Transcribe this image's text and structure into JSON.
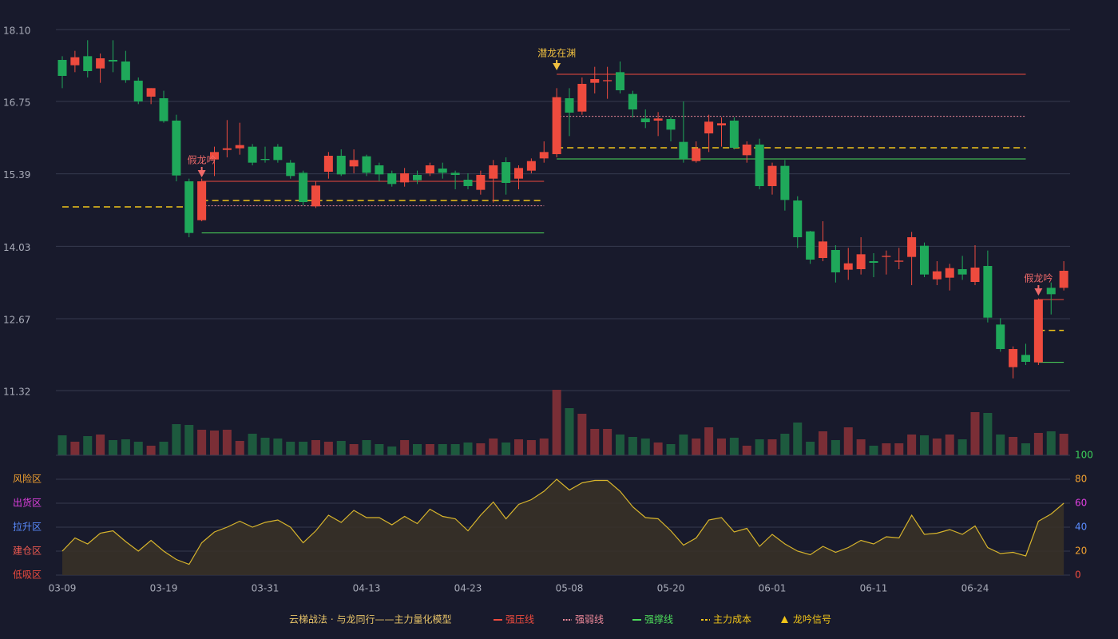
{
  "chart_data": {
    "type": "candlestick",
    "title": "云梯战法 · 与龙同行——主力量化模型",
    "categories": [
      "03-09",
      null,
      null,
      null,
      null,
      null,
      null,
      null,
      "03-19",
      null,
      null,
      null,
      null,
      null,
      null,
      null,
      "03-31",
      null,
      null,
      null,
      null,
      null,
      null,
      null,
      "04-13",
      null,
      null,
      null,
      null,
      null,
      null,
      null,
      "04-23",
      null,
      null,
      null,
      null,
      null,
      null,
      null,
      "05-08",
      null,
      null,
      null,
      null,
      null,
      null,
      null,
      "05-20",
      null,
      null,
      null,
      null,
      null,
      null,
      null,
      "06-01",
      null,
      null,
      null,
      null,
      null,
      null,
      null,
      "06-11",
      null,
      null,
      null,
      null,
      null,
      null,
      null,
      "06-24",
      null,
      null,
      null,
      null,
      null,
      null,
      null
    ],
    "open": [
      17.53,
      17.43,
      17.6,
      17.37,
      17.53,
      17.5,
      17.14,
      16.84,
      16.81,
      16.39,
      15.25,
      14.52,
      15.66,
      15.84,
      15.87,
      15.9,
      15.67,
      15.9,
      15.6,
      15.41,
      14.78,
      15.43,
      15.73,
      15.53,
      15.72,
      15.55,
      15.4,
      15.23,
      15.37,
      15.4,
      15.49,
      15.41,
      15.28,
      15.09,
      15.3,
      15.61,
      15.3,
      15.45,
      15.68,
      15.76,
      16.81,
      16.56,
      17.1,
      17.13,
      17.3,
      16.89,
      16.43,
      16.39,
      16.42,
      15.99,
      15.63,
      16.15,
      16.3,
      16.39,
      15.74,
      15.94,
      15.16,
      15.54,
      14.89,
      14.31,
      13.81,
      13.96,
      13.59,
      13.6,
      13.75,
      13.83,
      13.74,
      13.83,
      14.04,
      13.41,
      13.44,
      13.6,
      13.36,
      13.66,
      12.56,
      11.76,
      11.99,
      11.85,
      13.25,
      13.25
    ],
    "high": [
      17.6,
      17.7,
      17.9,
      17.65,
      17.9,
      17.7,
      17.2,
      17.0,
      16.95,
      16.5,
      15.3,
      15.3,
      15.9,
      16.4,
      16.35,
      15.95,
      15.9,
      15.95,
      15.65,
      15.45,
      15.25,
      15.8,
      15.85,
      15.85,
      15.75,
      15.6,
      15.45,
      15.5,
      15.45,
      15.6,
      15.6,
      15.45,
      15.4,
      15.45,
      15.65,
      15.7,
      15.55,
      15.68,
      16.0,
      17.0,
      17.0,
      17.2,
      17.4,
      17.4,
      17.5,
      16.95,
      16.6,
      16.55,
      16.45,
      16.75,
      16.0,
      16.5,
      16.45,
      16.45,
      16.0,
      16.05,
      15.6,
      15.65,
      14.97,
      14.32,
      14.5,
      14.05,
      14.0,
      14.2,
      13.9,
      13.95,
      14.0,
      14.3,
      14.1,
      13.75,
      13.7,
      13.85,
      14.05,
      13.95,
      12.68,
      12.15,
      12.2,
      13.05,
      13.35,
      13.75
    ],
    "low": [
      17.0,
      17.3,
      17.2,
      17.1,
      17.3,
      17.1,
      16.7,
      16.7,
      16.35,
      15.25,
      14.2,
      14.5,
      15.35,
      15.7,
      15.75,
      15.55,
      15.6,
      15.6,
      15.3,
      14.8,
      14.75,
      15.3,
      15.35,
      15.4,
      15.35,
      15.25,
      15.15,
      15.15,
      15.2,
      15.35,
      15.3,
      15.1,
      15.1,
      15.0,
      14.85,
      15.0,
      15.1,
      15.4,
      15.6,
      15.7,
      16.1,
      16.5,
      16.9,
      16.8,
      16.9,
      16.45,
      16.25,
      16.1,
      16.0,
      15.6,
      15.6,
      15.8,
      15.9,
      15.85,
      15.6,
      15.1,
      15.0,
      14.7,
      14.0,
      13.7,
      13.75,
      13.35,
      13.4,
      13.5,
      13.45,
      13.5,
      13.6,
      13.3,
      13.45,
      13.3,
      13.2,
      13.4,
      13.3,
      12.6,
      12.05,
      11.55,
      11.8,
      11.8,
      12.75,
      13.2
    ],
    "close": [
      17.23,
      17.58,
      17.32,
      17.56,
      17.5,
      17.15,
      16.75,
      17.0,
      16.38,
      15.36,
      14.28,
      15.25,
      15.8,
      15.87,
      15.93,
      15.6,
      15.65,
      15.65,
      15.35,
      14.86,
      15.17,
      15.73,
      15.38,
      15.65,
      15.41,
      15.38,
      15.2,
      15.4,
      15.27,
      15.55,
      15.41,
      15.37,
      15.16,
      15.37,
      15.55,
      15.22,
      15.5,
      15.63,
      15.8,
      16.83,
      16.54,
      17.08,
      17.17,
      17.15,
      16.96,
      16.6,
      16.36,
      16.43,
      16.22,
      15.67,
      15.87,
      16.37,
      16.34,
      15.88,
      15.94,
      15.16,
      15.54,
      14.9,
      14.2,
      13.78,
      14.12,
      13.54,
      13.71,
      13.88,
      13.72,
      13.85,
      13.76,
      14.2,
      13.5,
      13.56,
      13.62,
      13.5,
      13.63,
      12.69,
      12.1,
      12.1,
      11.86,
      13.03,
      13.13,
      13.57
    ],
    "up_color": "#ee4b3e",
    "down_color": "#1fa85a",
    "volume_up_color": "#7a2e36",
    "volume_down_color": "#1d5a3e",
    "ylim": [
      11.32,
      18.1
    ],
    "yticks": [
      11.32,
      12.67,
      14.03,
      15.39,
      16.75,
      {
        "value": 18.1,
        "label": "18.10"
      }
    ],
    "grid": true,
    "volume": [
      25,
      17,
      24,
      26,
      19,
      20,
      17,
      12,
      17,
      39,
      38,
      32,
      31,
      32,
      18,
      27,
      22,
      21,
      17,
      17,
      19,
      17,
      18,
      14,
      19,
      14,
      11,
      19,
      14,
      14,
      14,
      14,
      16,
      15,
      21,
      16,
      20,
      19,
      21,
      82,
      59,
      52,
      33,
      33,
      26,
      23,
      21,
      16,
      14,
      26,
      21,
      35,
      21,
      22,
      12,
      20,
      20,
      27,
      41,
      17,
      30,
      19,
      35,
      20,
      12,
      15,
      15,
      26,
      25,
      21,
      26,
      20,
      54,
      53,
      26,
      23,
      15,
      28,
      30,
      27
    ],
    "indicator": {
      "values": [
        20,
        31,
        26,
        35,
        37,
        28,
        20,
        29,
        20,
        13,
        9,
        27,
        36,
        40,
        45,
        40,
        44,
        46,
        40,
        27,
        37,
        50,
        44,
        54,
        48,
        48,
        42,
        49,
        43,
        55,
        49,
        47,
        37,
        50,
        61,
        47,
        59,
        63,
        70,
        80,
        71,
        77,
        79,
        79,
        70,
        57,
        48,
        47,
        37,
        25,
        31,
        46,
        48,
        36,
        39,
        24,
        34,
        26,
        20,
        17,
        24,
        19,
        23,
        29,
        26,
        32,
        31,
        50,
        34,
        35,
        38,
        34,
        41,
        23,
        18,
        19,
        16,
        45,
        51,
        60
      ],
      "color": "#d8b52c",
      "ylim": [
        0,
        100
      ],
      "yticks": [
        0,
        20,
        40,
        60,
        80,
        100
      ],
      "tick_colors": [
        "#ee4b3e",
        "#f0a030",
        "#5a8cff",
        "#e040e0",
        "#f0a030",
        "#3cd05a"
      ],
      "zones": [
        {
          "name": "低吸区",
          "value": 0,
          "color": "#ee4b3e"
        },
        {
          "name": "建仓区",
          "value": 20,
          "color": "#f05a50"
        },
        {
          "name": "拉升区",
          "value": 40,
          "color": "#5a8cff"
        },
        {
          "name": "出货区",
          "value": 60,
          "color": "#e040e0"
        },
        {
          "name": "风险区",
          "value": 80,
          "color": "#f0a030"
        }
      ]
    },
    "legend": [
      {
        "name": "强压线",
        "color": "#ee4b3e",
        "dash": "solid"
      },
      {
        "name": "强弱线",
        "color": "#f08a9a",
        "dash": "dotted"
      },
      {
        "name": "强撑线",
        "color": "#4ddb5a",
        "dash": "solid"
      },
      {
        "name": "主力成本",
        "color": "#f0c419",
        "dash": "dashed"
      },
      {
        "name": "龙吟信号",
        "color": "#f0c419",
        "dash": "triangle"
      }
    ],
    "lines": [
      {
        "kind": 3,
        "start": 0,
        "end": 10,
        "value": 14.77
      },
      {
        "kind": 0,
        "start": 11,
        "end": 38,
        "value": 15.25
      },
      {
        "kind": 1,
        "start": 11,
        "end": 38,
        "value": 14.79
      },
      {
        "kind": 3,
        "start": 11,
        "end": 38,
        "value": 14.89
      },
      {
        "kind": 2,
        "start": 11,
        "end": 38,
        "value": 14.28
      },
      {
        "kind": 0,
        "start": 39,
        "end": 76,
        "value": 17.26
      },
      {
        "kind": 1,
        "start": 39,
        "end": 76,
        "value": 16.47
      },
      {
        "kind": 3,
        "start": 39,
        "end": 76,
        "value": 15.88
      },
      {
        "kind": 2,
        "start": 39,
        "end": 76,
        "value": 15.67
      },
      {
        "kind": 0,
        "start": 77,
        "end": 79,
        "value": 13.03
      },
      {
        "kind": 3,
        "start": 77,
        "end": 79,
        "value": 12.45
      },
      {
        "kind": 2,
        "start": 77,
        "end": 79,
        "value": 11.85
      }
    ],
    "signals": [
      {
        "index": 11,
        "label": "假龙吟",
        "color": "#f06a6a"
      },
      {
        "index": 39,
        "label": "潜龙在渊",
        "color": "#f0c040"
      },
      {
        "index": 77,
        "label": "假龙吟",
        "color": "#f06a6a"
      }
    ]
  }
}
